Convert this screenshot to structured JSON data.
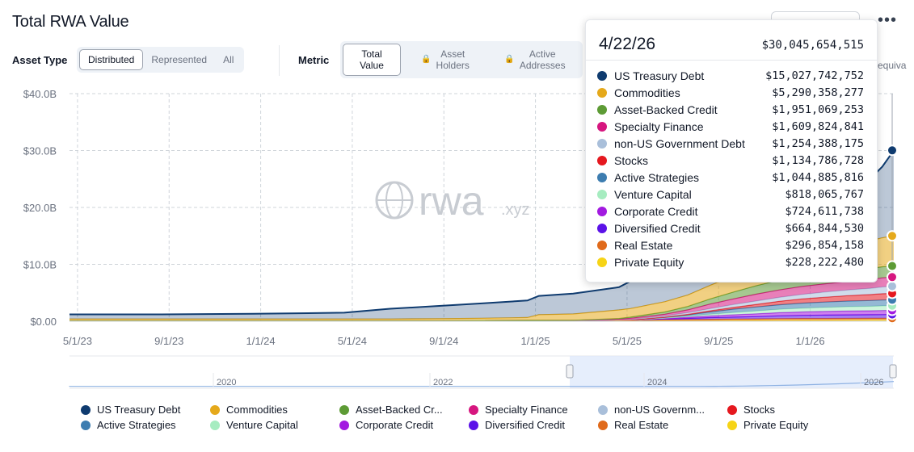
{
  "header": {
    "title": "Total RWA Value",
    "more_label": "•••"
  },
  "asset_type": {
    "label": "Asset Type",
    "options": [
      "Distributed",
      "Represented",
      "All"
    ],
    "selected": "Distributed"
  },
  "metric": {
    "label": "Metric",
    "options": [
      "Total\nValue",
      "Asset\nHolders",
      "Active\nAddresses"
    ],
    "selected": "Total Value",
    "overflow_text": "equiva"
  },
  "watermark": {
    "brand": "rwa",
    "suffix": ".xyz"
  },
  "colors": {
    "US Treasury Debt": "#0f3b6f",
    "Commodities": "#e5a91b",
    "Asset-Backed Credit": "#5d9b35",
    "Specialty Finance": "#d6167f",
    "non-US Government Debt": "#a9bfda",
    "Stocks": "#e5181f",
    "Active Strategies": "#3d7db0",
    "Venture Capital": "#a6ecc0",
    "Corporate Credit": "#a21ae0",
    "Diversified Credit": "#5b12e8",
    "Real Estate": "#e06a1b",
    "Private Equity": "#f6d417"
  },
  "tooltip": {
    "date": "4/22/26",
    "total": "$30,045,654,515",
    "rows": [
      {
        "name": "US Treasury Debt",
        "value": "$15,027,742,752"
      },
      {
        "name": "Commodities",
        "value": "$5,290,358,277"
      },
      {
        "name": "Asset-Backed Credit",
        "value": "$1,951,069,253"
      },
      {
        "name": "Specialty Finance",
        "value": "$1,609,824,841"
      },
      {
        "name": "non-US Government Debt",
        "value": "$1,254,388,175"
      },
      {
        "name": "Stocks",
        "value": "$1,134,786,728"
      },
      {
        "name": "Active Strategies",
        "value": "$1,044,885,816"
      },
      {
        "name": "Venture Capital",
        "value": "$818,065,767"
      },
      {
        "name": "Corporate Credit",
        "value": "$724,611,738"
      },
      {
        "name": "Diversified Credit",
        "value": "$664,844,530"
      },
      {
        "name": "Real Estate",
        "value": "$296,854,158"
      },
      {
        "name": "Private Equity",
        "value": "$228,222,480"
      }
    ]
  },
  "legend": [
    {
      "name": "US Treasury Debt",
      "label": "US Treasury Debt"
    },
    {
      "name": "Commodities",
      "label": "Commodities"
    },
    {
      "name": "Asset-Backed Credit",
      "label": "Asset-Backed Cr..."
    },
    {
      "name": "Specialty Finance",
      "label": "Specialty Finance"
    },
    {
      "name": "non-US Government Debt",
      "label": "non-US Governm..."
    },
    {
      "name": "Stocks",
      "label": "Stocks"
    },
    {
      "name": "Active Strategies",
      "label": "Active Strategies"
    },
    {
      "name": "Venture Capital",
      "label": "Venture Capital"
    },
    {
      "name": "Corporate Credit",
      "label": "Corporate Credit"
    },
    {
      "name": "Diversified Credit",
      "label": "Diversified Credit"
    },
    {
      "name": "Real Estate",
      "label": "Real Estate"
    },
    {
      "name": "Private Equity",
      "label": "Private Equity"
    }
  ],
  "chart_data": {
    "type": "area",
    "title": "Total RWA Value",
    "stacked": true,
    "y_ticks": [
      "$0.00",
      "$10.0B",
      "$20.0B",
      "$30.0B",
      "$40.0B"
    ],
    "ylim": [
      0,
      40
    ],
    "y_unit": "B USD",
    "x_ticks": [
      "5/1/23",
      "9/1/23",
      "1/1/24",
      "5/1/24",
      "9/1/24",
      "1/1/25",
      "5/1/25",
      "9/1/25",
      "1/1/26"
    ],
    "x_range": [
      "2023-04-20",
      "2026-04-22"
    ],
    "navigator_ticks": [
      "2020",
      "2022",
      "2024",
      "2026"
    ],
    "grid": true,
    "legend_position": "bottom",
    "x": [
      0,
      4,
      8,
      12,
      14,
      16,
      18,
      20,
      20.5,
      22,
      24,
      24.5,
      26,
      27,
      28,
      29,
      30,
      31,
      32,
      33,
      34,
      35,
      35.5,
      36
    ],
    "x_unit": "months since 2023-04-20",
    "series": [
      {
        "name": "Private Equity",
        "values": [
          0.05,
          0.05,
          0.05,
          0.05,
          0.05,
          0.05,
          0.05,
          0.05,
          0.05,
          0.05,
          0.08,
          0.08,
          0.1,
          0.1,
          0.12,
          0.14,
          0.16,
          0.18,
          0.2,
          0.2,
          0.21,
          0.22,
          0.22,
          0.23
        ]
      },
      {
        "name": "Real Estate",
        "values": [
          0.05,
          0.05,
          0.05,
          0.05,
          0.05,
          0.05,
          0.08,
          0.1,
          0.1,
          0.12,
          0.15,
          0.15,
          0.18,
          0.2,
          0.22,
          0.24,
          0.25,
          0.27,
          0.28,
          0.28,
          0.29,
          0.29,
          0.29,
          0.3
        ]
      },
      {
        "name": "Diversified Credit",
        "values": [
          0,
          0,
          0,
          0,
          0,
          0,
          0,
          0,
          0,
          0,
          0,
          0,
          0.1,
          0.2,
          0.3,
          0.35,
          0.4,
          0.5,
          0.55,
          0.6,
          0.62,
          0.64,
          0.66,
          0.66
        ]
      },
      {
        "name": "Corporate Credit",
        "values": [
          0,
          0,
          0,
          0,
          0,
          0,
          0,
          0,
          0,
          0,
          0,
          0,
          0.1,
          0.2,
          0.3,
          0.4,
          0.5,
          0.55,
          0.6,
          0.65,
          0.68,
          0.7,
          0.72,
          0.72
        ]
      },
      {
        "name": "Venture Capital",
        "values": [
          0,
          0,
          0,
          0,
          0,
          0,
          0,
          0,
          0,
          0,
          0,
          0,
          0.1,
          0.2,
          0.3,
          0.4,
          0.5,
          0.6,
          0.65,
          0.7,
          0.75,
          0.78,
          0.8,
          0.82
        ]
      },
      {
        "name": "Active Strategies",
        "values": [
          0,
          0,
          0,
          0,
          0,
          0,
          0,
          0,
          0,
          0,
          0,
          0,
          0.1,
          0.2,
          0.4,
          0.6,
          0.7,
          0.8,
          0.9,
          0.95,
          1.0,
          1.02,
          1.04,
          1.04
        ]
      },
      {
        "name": "Stocks",
        "values": [
          0,
          0,
          0,
          0,
          0,
          0,
          0,
          0,
          0,
          0,
          0,
          0,
          0.05,
          0.1,
          0.2,
          0.3,
          0.45,
          0.6,
          0.75,
          0.85,
          0.95,
          1.05,
          1.1,
          1.13
        ]
      },
      {
        "name": "non-US Government Debt",
        "values": [
          0,
          0,
          0,
          0,
          0,
          0,
          0,
          0,
          0,
          0,
          0.05,
          0.1,
          0.2,
          0.3,
          0.4,
          0.5,
          0.6,
          0.7,
          0.8,
          0.9,
          1.0,
          1.1,
          1.2,
          1.25
        ]
      },
      {
        "name": "Specialty Finance",
        "values": [
          0,
          0,
          0,
          0,
          0,
          0,
          0,
          0,
          0,
          0,
          0.1,
          0.2,
          0.3,
          0.5,
          0.8,
          1.0,
          1.2,
          1.3,
          1.4,
          1.45,
          1.5,
          1.55,
          1.6,
          1.61
        ]
      },
      {
        "name": "Asset-Backed Credit",
        "values": [
          0,
          0,
          0,
          0,
          0,
          0,
          0,
          0,
          0,
          0,
          0.1,
          0.2,
          0.4,
          0.6,
          0.9,
          1.2,
          1.5,
          1.7,
          1.8,
          1.85,
          1.9,
          1.92,
          1.94,
          1.95
        ]
      },
      {
        "name": "Commodities",
        "values": [
          0.3,
          0.3,
          0.3,
          0.3,
          0.3,
          0.35,
          0.4,
          0.5,
          1.0,
          1.1,
          1.5,
          1.5,
          1.8,
          2.0,
          2.4,
          2.8,
          3.2,
          3.6,
          4.0,
          4.3,
          4.6,
          4.9,
          5.1,
          5.29
        ]
      },
      {
        "name": "US Treasury Debt",
        "values": [
          0.8,
          0.8,
          0.9,
          1.1,
          1.8,
          2.2,
          2.6,
          3.0,
          3.3,
          3.6,
          4.0,
          4.8,
          5.3,
          5.6,
          6.1,
          6.5,
          7.0,
          7.6,
          8.3,
          9.0,
          10.0,
          11.0,
          12.5,
          15.03
        ]
      }
    ]
  }
}
